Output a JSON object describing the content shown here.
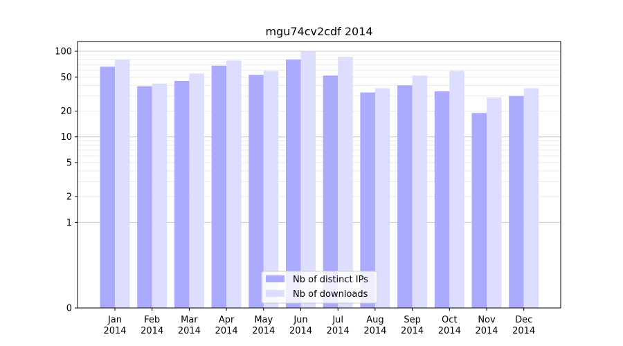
{
  "chart_data": {
    "type": "bar",
    "title": "mgu74cv2cdf 2014",
    "xlabel": "",
    "ylabel": "",
    "y_scale": "symlog",
    "ylim": [
      0,
      130
    ],
    "grid": "horizontal major and minor",
    "legend_position": "bottom-center",
    "categories": [
      "Jan\n2014",
      "Feb\n2014",
      "Mar\n2014",
      "Apr\n2014",
      "May\n2014",
      "Jun\n2014",
      "Jul\n2014",
      "Aug\n2014",
      "Sep\n2014",
      "Oct\n2014",
      "Nov\n2014",
      "Dec\n2014"
    ],
    "category_lines": [
      [
        "Jan",
        "2014"
      ],
      [
        "Feb",
        "2014"
      ],
      [
        "Mar",
        "2014"
      ],
      [
        "Apr",
        "2014"
      ],
      [
        "May",
        "2014"
      ],
      [
        "Jun",
        "2014"
      ],
      [
        "Jul",
        "2014"
      ],
      [
        "Aug",
        "2014"
      ],
      [
        "Sep",
        "2014"
      ],
      [
        "Oct",
        "2014"
      ],
      [
        "Nov",
        "2014"
      ],
      [
        "Dec",
        "2014"
      ]
    ],
    "y_ticks": [
      {
        "value": 0,
        "label": "0"
      },
      {
        "value": 1,
        "label": "1"
      },
      {
        "value": 2,
        "label": "2"
      },
      {
        "value": 5,
        "label": "5"
      },
      {
        "value": 10,
        "label": "10"
      },
      {
        "value": 20,
        "label": "20"
      },
      {
        "value": 50,
        "label": "50"
      },
      {
        "value": 100,
        "label": "100"
      }
    ],
    "series": [
      {
        "name": "Nb of distinct IPs",
        "color": "#aaaaff",
        "values": [
          66,
          39,
          45,
          68,
          53,
          80,
          52,
          33,
          40,
          34,
          19,
          30
        ]
      },
      {
        "name": "Nb of downloads",
        "color": "#ddddff",
        "values": [
          80,
          42,
          55,
          78,
          59,
          99,
          86,
          37,
          52,
          59,
          29,
          37
        ]
      }
    ]
  }
}
